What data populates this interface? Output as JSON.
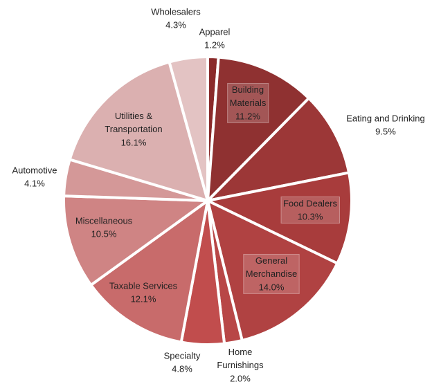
{
  "chart_data": {
    "type": "pie",
    "categories": [
      "Apparel",
      "Building Materials",
      "Eating and Drinking",
      "Food Dealers",
      "General Merchandise",
      "Home Furnishings",
      "Specialty",
      "Taxable Services",
      "Miscellaneous",
      "Automotive",
      "Utilities & Transportation",
      "Wholesalers"
    ],
    "values": [
      1.2,
      11.2,
      9.5,
      10.3,
      14.0,
      2.0,
      4.8,
      12.1,
      10.5,
      4.1,
      16.1,
      4.3
    ],
    "value_labels": [
      "1.2%",
      "11.2%",
      "9.5%",
      "10.3%",
      "14.0%",
      "2.0%",
      "4.8%",
      "12.1%",
      "10.5%",
      "4.1%",
      "16.1%",
      "4.3%"
    ],
    "colors": [
      "#8a2a2a",
      "#8f3131",
      "#9c3737",
      "#a83c3c",
      "#b04242",
      "#b84747",
      "#c14d4d",
      "#c86b6b",
      "#cf8484",
      "#d49898",
      "#dbb0b0",
      "#e3c3c3"
    ]
  }
}
